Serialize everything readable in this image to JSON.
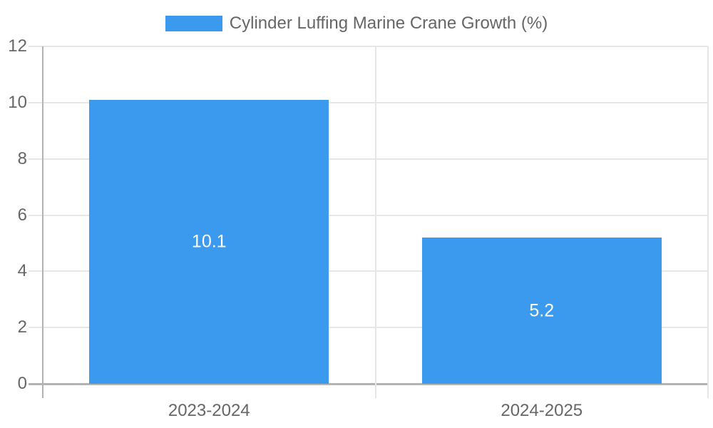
{
  "chart_data": {
    "type": "bar",
    "title": "",
    "categories": [
      "2023-2024",
      "2024-2025"
    ],
    "series": [
      {
        "name": "Cylinder Luffing Marine Crane Growth (%)",
        "values": [
          10.1,
          5.2
        ]
      }
    ],
    "data_labels": [
      "10.1",
      "5.2"
    ],
    "xlabel": "",
    "ylabel": "",
    "ylim": [
      0,
      12
    ],
    "yticks": [
      0,
      2,
      4,
      6,
      8,
      10,
      12
    ],
    "grid": true,
    "legend_position": "top",
    "bar_fraction_of_category": 0.72,
    "colors": {
      "bar": "#3b99ee",
      "gridline": "#e6e6e6",
      "zero_line": "#b3b3b3",
      "tick_label": "#666666",
      "legend_label": "#666666",
      "data_label": "#ffffff",
      "background": "#ffffff"
    }
  }
}
